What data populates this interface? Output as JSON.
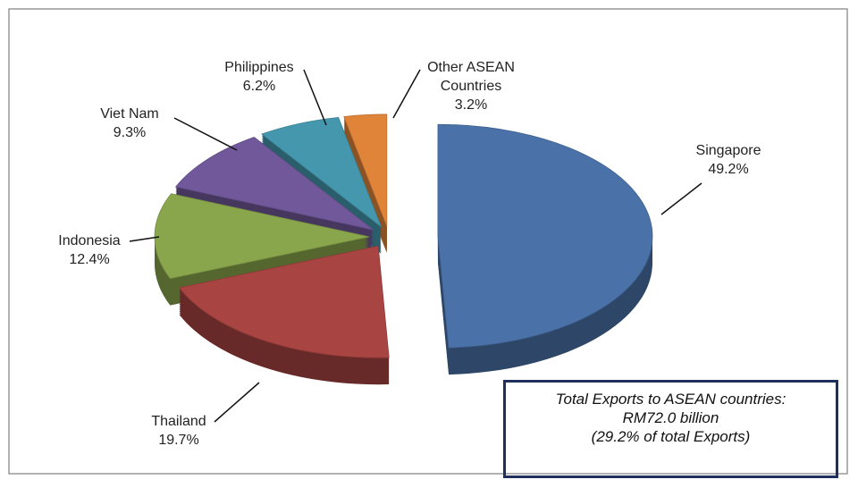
{
  "chart_data": {
    "type": "pie",
    "categories": [
      "Singapore",
      "Thailand",
      "Indonesia",
      "Viet Nam",
      "Philippines",
      "Other ASEAN Countries"
    ],
    "values": [
      49.2,
      19.7,
      12.4,
      9.3,
      6.2,
      3.2
    ],
    "value_labels": [
      "49.2%",
      "19.7%",
      "12.4%",
      "9.3%",
      "6.2%",
      "3.2%"
    ],
    "colors": [
      "#4a72a8",
      "#a84442",
      "#89a64c",
      "#71589a",
      "#4497ad",
      "#e0843a"
    ],
    "annotation": [
      "Total Exports to ASEAN countries:",
      "RM72.0 billion",
      "(29.2% of total Exports)"
    ]
  }
}
